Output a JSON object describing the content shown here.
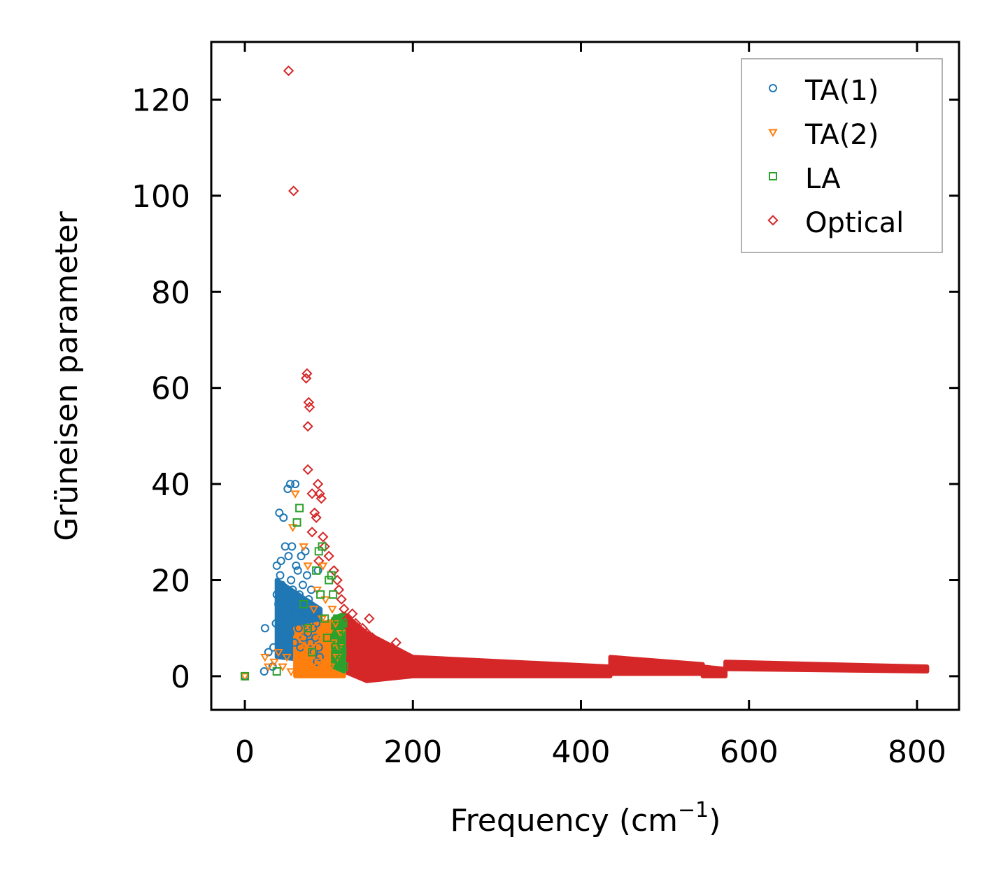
{
  "chart_data": {
    "type": "scatter",
    "title": "",
    "xlabel": "Frequency (cm",
    "xlabel_exponent": "−1",
    "xlabel_suffix": ")",
    "ylabel": "Grüneisen parameter",
    "xlim": [
      -40,
      850
    ],
    "ylim": [
      -7,
      132
    ],
    "xticks": [
      0,
      200,
      400,
      600,
      800
    ],
    "yticks": [
      0,
      20,
      40,
      60,
      80,
      100,
      120
    ],
    "grid": false,
    "legend_position": "top-right",
    "series": [
      {
        "name": "TA(1)",
        "color": "#1f77b4",
        "marker": "circle",
        "points": [
          [
            0,
            0
          ],
          [
            23,
            1
          ],
          [
            24,
            10
          ],
          [
            28,
            5
          ],
          [
            33,
            2
          ],
          [
            34,
            6
          ],
          [
            37,
            11
          ],
          [
            38,
            17
          ],
          [
            38,
            23
          ],
          [
            40,
            15
          ],
          [
            41,
            34
          ],
          [
            42,
            21
          ],
          [
            43,
            24
          ],
          [
            44,
            19
          ],
          [
            45,
            12
          ],
          [
            46,
            8
          ],
          [
            46,
            33
          ],
          [
            48,
            27
          ],
          [
            49,
            16
          ],
          [
            50,
            14
          ],
          [
            51,
            39
          ],
          [
            52,
            25
          ],
          [
            53,
            13
          ],
          [
            54,
            9
          ],
          [
            54,
            40
          ],
          [
            55,
            20
          ],
          [
            56,
            27
          ],
          [
            57,
            18
          ],
          [
            58,
            12
          ],
          [
            59,
            7
          ],
          [
            60,
            40
          ],
          [
            61,
            23
          ],
          [
            62,
            14
          ],
          [
            63,
            22
          ],
          [
            64,
            10
          ],
          [
            65,
            17
          ],
          [
            66,
            6
          ],
          [
            67,
            25
          ],
          [
            68,
            12
          ],
          [
            69,
            19
          ],
          [
            70,
            8
          ],
          [
            71,
            15
          ],
          [
            72,
            26
          ],
          [
            73,
            11
          ],
          [
            74,
            21
          ],
          [
            75,
            9
          ],
          [
            76,
            16
          ],
          [
            77,
            13
          ],
          [
            78,
            7
          ],
          [
            79,
            18
          ],
          [
            80,
            12
          ],
          [
            81,
            10
          ],
          [
            82,
            5
          ],
          [
            83,
            14
          ],
          [
            84,
            8
          ],
          [
            85,
            11
          ],
          [
            86,
            3
          ],
          [
            87,
            22
          ],
          [
            88,
            6
          ],
          [
            89,
            4
          ]
        ]
      },
      {
        "name": "TA(2)",
        "color": "#ff7f0e",
        "marker": "triangle-down",
        "points": [
          [
            0,
            0
          ],
          [
            24,
            4
          ],
          [
            28,
            2
          ],
          [
            35,
            3
          ],
          [
            40,
            5
          ],
          [
            45,
            2
          ],
          [
            50,
            4
          ],
          [
            55,
            1
          ],
          [
            57,
            31
          ],
          [
            60,
            38
          ],
          [
            62,
            3
          ],
          [
            65,
            8
          ],
          [
            68,
            2
          ],
          [
            70,
            27
          ],
          [
            72,
            6
          ],
          [
            75,
            23
          ],
          [
            76,
            4
          ],
          [
            78,
            10
          ],
          [
            80,
            2
          ],
          [
            82,
            14
          ],
          [
            84,
            6
          ],
          [
            86,
            18
          ],
          [
            88,
            3
          ],
          [
            90,
            8
          ],
          [
            92,
            12
          ],
          [
            93,
            23
          ],
          [
            94,
            1
          ],
          [
            96,
            16
          ],
          [
            98,
            5
          ],
          [
            100,
            9
          ],
          [
            102,
            2
          ],
          [
            104,
            14
          ],
          [
            106,
            7
          ],
          [
            108,
            11
          ],
          [
            110,
            4
          ],
          [
            112,
            6
          ],
          [
            114,
            9
          ]
        ]
      },
      {
        "name": "LA",
        "color": "#2ca02c",
        "marker": "square",
        "points": [
          [
            0,
            0
          ],
          [
            38,
            1
          ],
          [
            62,
            32
          ],
          [
            65,
            35
          ],
          [
            70,
            15
          ],
          [
            75,
            10
          ],
          [
            80,
            5
          ],
          [
            85,
            22
          ],
          [
            88,
            26
          ],
          [
            90,
            17
          ],
          [
            92,
            27
          ],
          [
            95,
            12
          ],
          [
            98,
            8
          ],
          [
            100,
            20
          ],
          [
            103,
            21
          ],
          [
            105,
            17
          ],
          [
            108,
            6
          ],
          [
            110,
            12
          ],
          [
            112,
            9
          ],
          [
            113,
            3
          ],
          [
            115,
            7
          ],
          [
            116,
            5
          ],
          [
            117,
            11
          ],
          [
            118,
            2
          ]
        ]
      },
      {
        "name": "Optical",
        "color": "#d62728",
        "marker": "diamond",
        "points": [
          [
            52,
            126
          ],
          [
            58,
            101
          ],
          [
            73,
            62
          ],
          [
            74,
            63
          ],
          [
            75,
            52
          ],
          [
            76,
            57
          ],
          [
            77,
            56
          ],
          [
            75,
            43
          ],
          [
            80,
            38
          ],
          [
            83,
            34
          ],
          [
            85,
            33
          ],
          [
            87,
            40
          ],
          [
            89,
            38
          ],
          [
            91,
            37
          ],
          [
            93,
            29
          ],
          [
            80,
            30
          ],
          [
            88,
            24
          ],
          [
            95,
            27
          ],
          [
            100,
            25
          ],
          [
            106,
            22
          ],
          [
            110,
            20
          ],
          [
            112,
            18
          ],
          [
            115,
            16
          ],
          [
            118,
            14
          ],
          [
            122,
            12
          ],
          [
            125,
            10
          ],
          [
            128,
            13
          ],
          [
            130,
            9
          ],
          [
            132,
            11
          ],
          [
            135,
            8
          ],
          [
            138,
            7
          ],
          [
            140,
            10
          ],
          [
            143,
            6
          ],
          [
            145,
            9
          ],
          [
            148,
            12
          ],
          [
            150,
            5
          ],
          [
            152,
            8
          ],
          [
            155,
            7
          ],
          [
            158,
            6
          ],
          [
            160,
            5
          ],
          [
            165,
            4
          ],
          [
            170,
            6
          ],
          [
            175,
            5
          ],
          [
            180,
            7
          ],
          [
            185,
            4
          ],
          [
            190,
            3
          ]
        ]
      }
    ],
    "dense_bands": [
      {
        "series": "Optical",
        "x": [
          118,
          145
        ],
        "y_low": [
          1,
          -1
        ],
        "y_high": [
          13,
          9
        ]
      },
      {
        "series": "Optical",
        "x": [
          145,
          200
        ],
        "y_low": [
          -1,
          0
        ],
        "y_high": [
          9,
          4
        ]
      },
      {
        "series": "Optical",
        "x": [
          200,
          435
        ],
        "y_low": [
          0,
          0
        ],
        "y_high": [
          4,
          2
        ]
      },
      {
        "series": "Optical",
        "x": [
          435,
          545
        ],
        "y_low": [
          0.5,
          0.5
        ],
        "y_high": [
          4,
          2.5
        ]
      },
      {
        "series": "Optical",
        "x": [
          545,
          572
        ],
        "y_low": [
          0,
          0
        ],
        "y_high": [
          2,
          1.5
        ]
      },
      {
        "series": "Optical",
        "x": [
          572,
          812
        ],
        "y_low": [
          1.5,
          1
        ],
        "y_high": [
          3,
          2
        ]
      },
      {
        "series": "TA(2)",
        "x": [
          60,
          118
        ],
        "y_low": [
          0,
          0
        ],
        "y_high": [
          10,
          12
        ]
      },
      {
        "series": "TA(1)",
        "x": [
          38,
          90
        ],
        "y_low": [
          4,
          3
        ],
        "y_high": [
          20,
          14
        ]
      },
      {
        "series": "LA",
        "x": [
          105,
          118
        ],
        "y_low": [
          2,
          1
        ],
        "y_high": [
          12,
          13
        ]
      }
    ]
  }
}
